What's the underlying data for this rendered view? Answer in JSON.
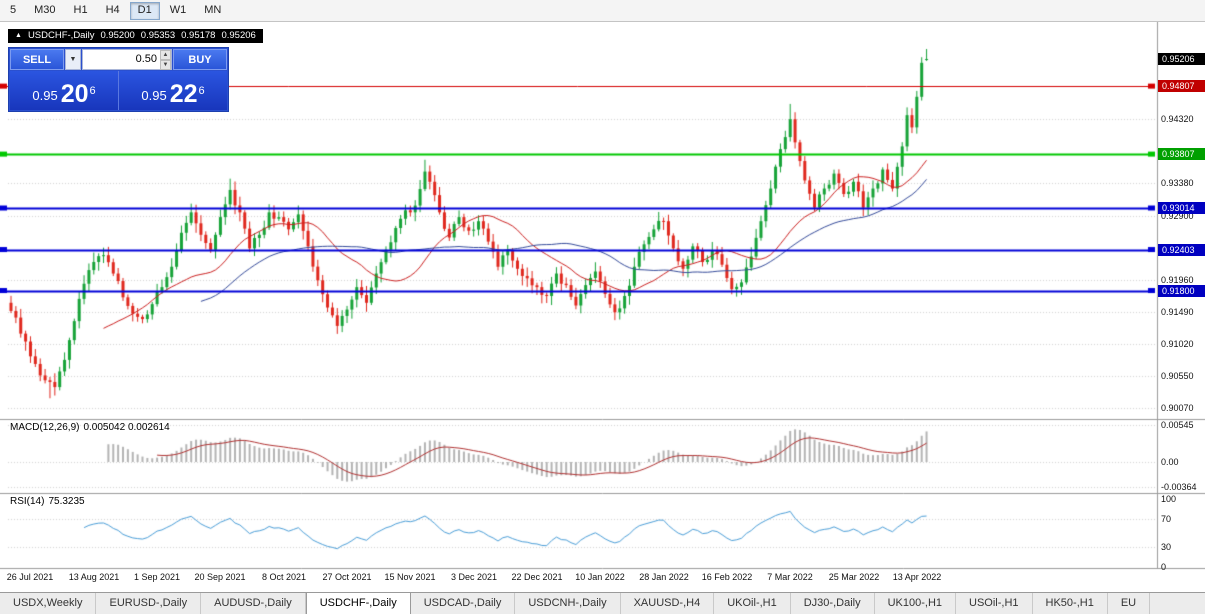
{
  "toolbar": {
    "timeframes": [
      {
        "label": "5",
        "active": false
      },
      {
        "label": "M30",
        "active": false
      },
      {
        "label": "H1",
        "active": false
      },
      {
        "label": "H4",
        "active": false
      },
      {
        "label": "D1",
        "active": true
      },
      {
        "label": "W1",
        "active": false
      },
      {
        "label": "MN",
        "active": false
      }
    ]
  },
  "chart": {
    "collapse_icon": "▲",
    "symbol_period": "USDCHF-,Daily",
    "ohlc": {
      "open": "0.95200",
      "high": "0.95353",
      "low": "0.95178",
      "close": "0.95206"
    }
  },
  "one_click": {
    "sell_label": "SELL",
    "buy_label": "BUY",
    "lot_size": "0.50",
    "dropdown_icon": "▼",
    "spin_up_icon": "▲",
    "spin_down_icon": "▼",
    "bid": {
      "prefix": "0.95",
      "pips": "20",
      "pipette": "6"
    },
    "ask": {
      "prefix": "0.95",
      "pips": "22",
      "pipette": "6"
    }
  },
  "indicator_labels": {
    "macd": "MACD(12,26,9)",
    "macd_values": "0.005042 0.002614",
    "rsi": "RSI(14)",
    "rsi_value": "75.3235"
  },
  "tabs": {
    "active_index": 3,
    "items": [
      "USDX,Weekly",
      "EURUSD-,Daily",
      "AUDUSD-,Daily",
      "USDCHF-,Daily",
      "USDCAD-,Daily",
      "USDCNH-,Daily",
      "XAUUSD-,H4",
      "UKOil-,H1",
      "DJ30-,Daily",
      "UK100-,H1",
      "USOil-,H1",
      "HK50-,H1",
      "EU"
    ]
  },
  "chart_data": {
    "type": "candlestick",
    "title": "USDCHF-,Daily",
    "x_labels": [
      "26 Jul 2021",
      "13 Aug 2021",
      "1 Sep 2021",
      "20 Sep 2021",
      "8 Oct 2021",
      "27 Oct 2021",
      "15 Nov 2021",
      "3 Dec 2021",
      "22 Dec 2021",
      "10 Jan 2022",
      "28 Jan 2022",
      "16 Feb 2022",
      "7 Mar 2022",
      "25 Mar 2022",
      "13 Apr 2022"
    ],
    "ylim": [
      0.9007,
      0.954
    ],
    "price_grid_labels": [
      "0.94320",
      "0.93380",
      "0.92900",
      "0.91960",
      "0.91490",
      "0.91020",
      "0.90550",
      "0.90070"
    ],
    "price_badges": [
      {
        "text": "0.95206",
        "color": "#000000"
      },
      {
        "text": "0.94807",
        "color": "#c00000"
      },
      {
        "text": "0.93807",
        "color": "#00a000"
      },
      {
        "text": "0.93014",
        "color": "#0000c0"
      },
      {
        "text": "0.92403",
        "color": "#0000c0"
      },
      {
        "text": "0.91800",
        "color": "#0000c0"
      }
    ],
    "hlines": [
      {
        "price": 0.94807,
        "color": "#d40000",
        "width": 1
      },
      {
        "price": 0.93807,
        "color": "#00c800",
        "width": 2
      },
      {
        "price": 0.93014,
        "color": "#0000d8",
        "width": 2
      },
      {
        "price": 0.92403,
        "color": "#0000d8",
        "width": 2
      },
      {
        "price": 0.918,
        "color": "#0000d8",
        "width": 2
      }
    ],
    "ohlc_current": {
      "open": 0.952,
      "high": 0.95353,
      "low": 0.95178,
      "close": 0.95206
    },
    "close_anchors": [
      [
        0,
        0.915
      ],
      [
        3,
        0.9105
      ],
      [
        5,
        0.9072
      ],
      [
        7,
        0.9048
      ],
      [
        9,
        0.9038
      ],
      [
        11,
        0.9078
      ],
      [
        13,
        0.9135
      ],
      [
        15,
        0.919
      ],
      [
        17,
        0.9222
      ],
      [
        19,
        0.9232
      ],
      [
        21,
        0.9205
      ],
      [
        23,
        0.917
      ],
      [
        25,
        0.9146
      ],
      [
        27,
        0.9138
      ],
      [
        29,
        0.916
      ],
      [
        31,
        0.9185
      ],
      [
        33,
        0.9215
      ],
      [
        35,
        0.9265
      ],
      [
        37,
        0.9295
      ],
      [
        39,
        0.9262
      ],
      [
        41,
        0.924
      ],
      [
        43,
        0.9288
      ],
      [
        45,
        0.9328
      ],
      [
        47,
        0.9295
      ],
      [
        49,
        0.9242
      ],
      [
        51,
        0.9262
      ],
      [
        53,
        0.9295
      ],
      [
        55,
        0.9288
      ],
      [
        57,
        0.927
      ],
      [
        59,
        0.9292
      ],
      [
        61,
        0.9245
      ],
      [
        63,
        0.9195
      ],
      [
        65,
        0.9155
      ],
      [
        67,
        0.9128
      ],
      [
        69,
        0.9152
      ],
      [
        71,
        0.9185
      ],
      [
        73,
        0.9162
      ],
      [
        75,
        0.9205
      ],
      [
        77,
        0.924
      ],
      [
        79,
        0.9272
      ],
      [
        81,
        0.9298
      ],
      [
        83,
        0.9305
      ],
      [
        85,
        0.9355
      ],
      [
        86,
        0.934
      ],
      [
        88,
        0.9295
      ],
      [
        90,
        0.9258
      ],
      [
        92,
        0.9288
      ],
      [
        94,
        0.9268
      ],
      [
        96,
        0.9282
      ],
      [
        98,
        0.9252
      ],
      [
        100,
        0.9215
      ],
      [
        102,
        0.9238
      ],
      [
        104,
        0.9212
      ],
      [
        106,
        0.9198
      ],
      [
        108,
        0.9185
      ],
      [
        110,
        0.9172
      ],
      [
        112,
        0.9205
      ],
      [
        114,
        0.9188
      ],
      [
        116,
        0.9158
      ],
      [
        118,
        0.9188
      ],
      [
        120,
        0.9208
      ],
      [
        122,
        0.9175
      ],
      [
        124,
        0.9148
      ],
      [
        126,
        0.9172
      ],
      [
        128,
        0.9215
      ],
      [
        130,
        0.9248
      ],
      [
        132,
        0.927
      ],
      [
        134,
        0.9282
      ],
      [
        136,
        0.9242
      ],
      [
        138,
        0.9212
      ],
      [
        140,
        0.9245
      ],
      [
        142,
        0.9222
      ],
      [
        144,
        0.9238
      ],
      [
        146,
        0.9218
      ],
      [
        148,
        0.9182
      ],
      [
        150,
        0.9192
      ],
      [
        152,
        0.923
      ],
      [
        154,
        0.9282
      ],
      [
        156,
        0.933
      ],
      [
        158,
        0.9388
      ],
      [
        160,
        0.9432
      ],
      [
        161,
        0.9398
      ],
      [
        163,
        0.9342
      ],
      [
        165,
        0.9302
      ],
      [
        167,
        0.933
      ],
      [
        169,
        0.9352
      ],
      [
        171,
        0.9322
      ],
      [
        173,
        0.934
      ],
      [
        175,
        0.9302
      ],
      [
        177,
        0.933
      ],
      [
        179,
        0.9358
      ],
      [
        181,
        0.933
      ],
      [
        183,
        0.9392
      ],
      [
        184,
        0.9438
      ],
      [
        185,
        0.942
      ],
      [
        186,
        0.9465
      ],
      [
        187,
        0.9515
      ],
      [
        188,
        0.95206
      ]
    ],
    "wick_extends": [
      [
        8,
        -0.0018
      ],
      [
        45,
        0.0012
      ],
      [
        85,
        0.001
      ],
      [
        160,
        0.0018
      ]
    ],
    "ma": [
      {
        "type": "sma",
        "period": 20,
        "color": "#cc2020"
      },
      {
        "type": "sma",
        "period": 40,
        "color": "#344a9a"
      }
    ],
    "macd": {
      "params": "12,26,9",
      "main": 0.005042,
      "signal": 0.002614,
      "axis": [
        {
          "text": "0.00545",
          "value": 0.00545
        },
        {
          "text": "0.00",
          "value": 0
        },
        {
          "text": "-0.00364",
          "value": -0.00364
        }
      ]
    },
    "rsi": {
      "period": 14,
      "value": 75.3235,
      "levels": [
        70,
        30
      ],
      "axis": [
        {
          "text": "100",
          "value": 100
        },
        {
          "text": "70",
          "value": 70
        },
        {
          "text": "30",
          "value": 30
        },
        {
          "text": "0",
          "value": 0
        }
      ]
    },
    "colors": {
      "up": "#17a338",
      "down": "#e0281e",
      "ma_fast": "#cc2020",
      "ma_slow": "#344a9a",
      "macd_hist": "#b4b4b4",
      "macd_signal": "#b03030",
      "rsi_line": "#4a9ed8",
      "grid": "#d4d4d4"
    }
  }
}
